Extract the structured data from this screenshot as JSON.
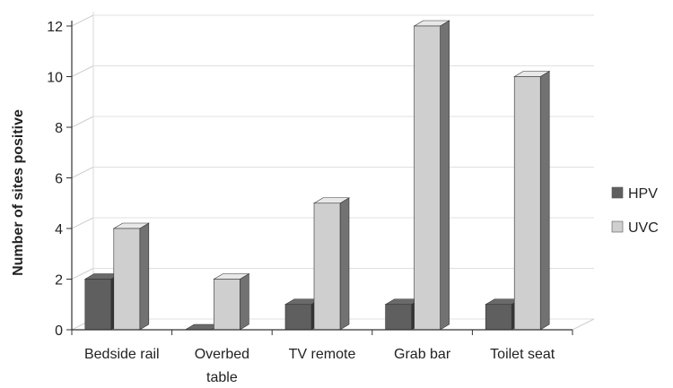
{
  "chart_data": {
    "type": "bar",
    "title": "",
    "xlabel": "",
    "ylabel": "Number of sites positive",
    "categories": [
      [
        "Bedside rail"
      ],
      [
        "Overbed",
        "table"
      ],
      [
        "TV remote"
      ],
      [
        "Grab bar"
      ],
      [
        "Toilet seat"
      ]
    ],
    "series": [
      {
        "name": "HPV",
        "values": [
          2,
          0,
          1,
          1,
          1
        ],
        "color": "#5f5f5f"
      },
      {
        "name": "UVC",
        "values": [
          4,
          2,
          5,
          12,
          10
        ],
        "color": "#cfcfcf"
      }
    ],
    "ylim": [
      0,
      12
    ],
    "yticks": [
      "0",
      "2",
      "4",
      "6",
      "8",
      "10",
      "12"
    ],
    "grid": true,
    "legend": "right",
    "style": "3d"
  }
}
